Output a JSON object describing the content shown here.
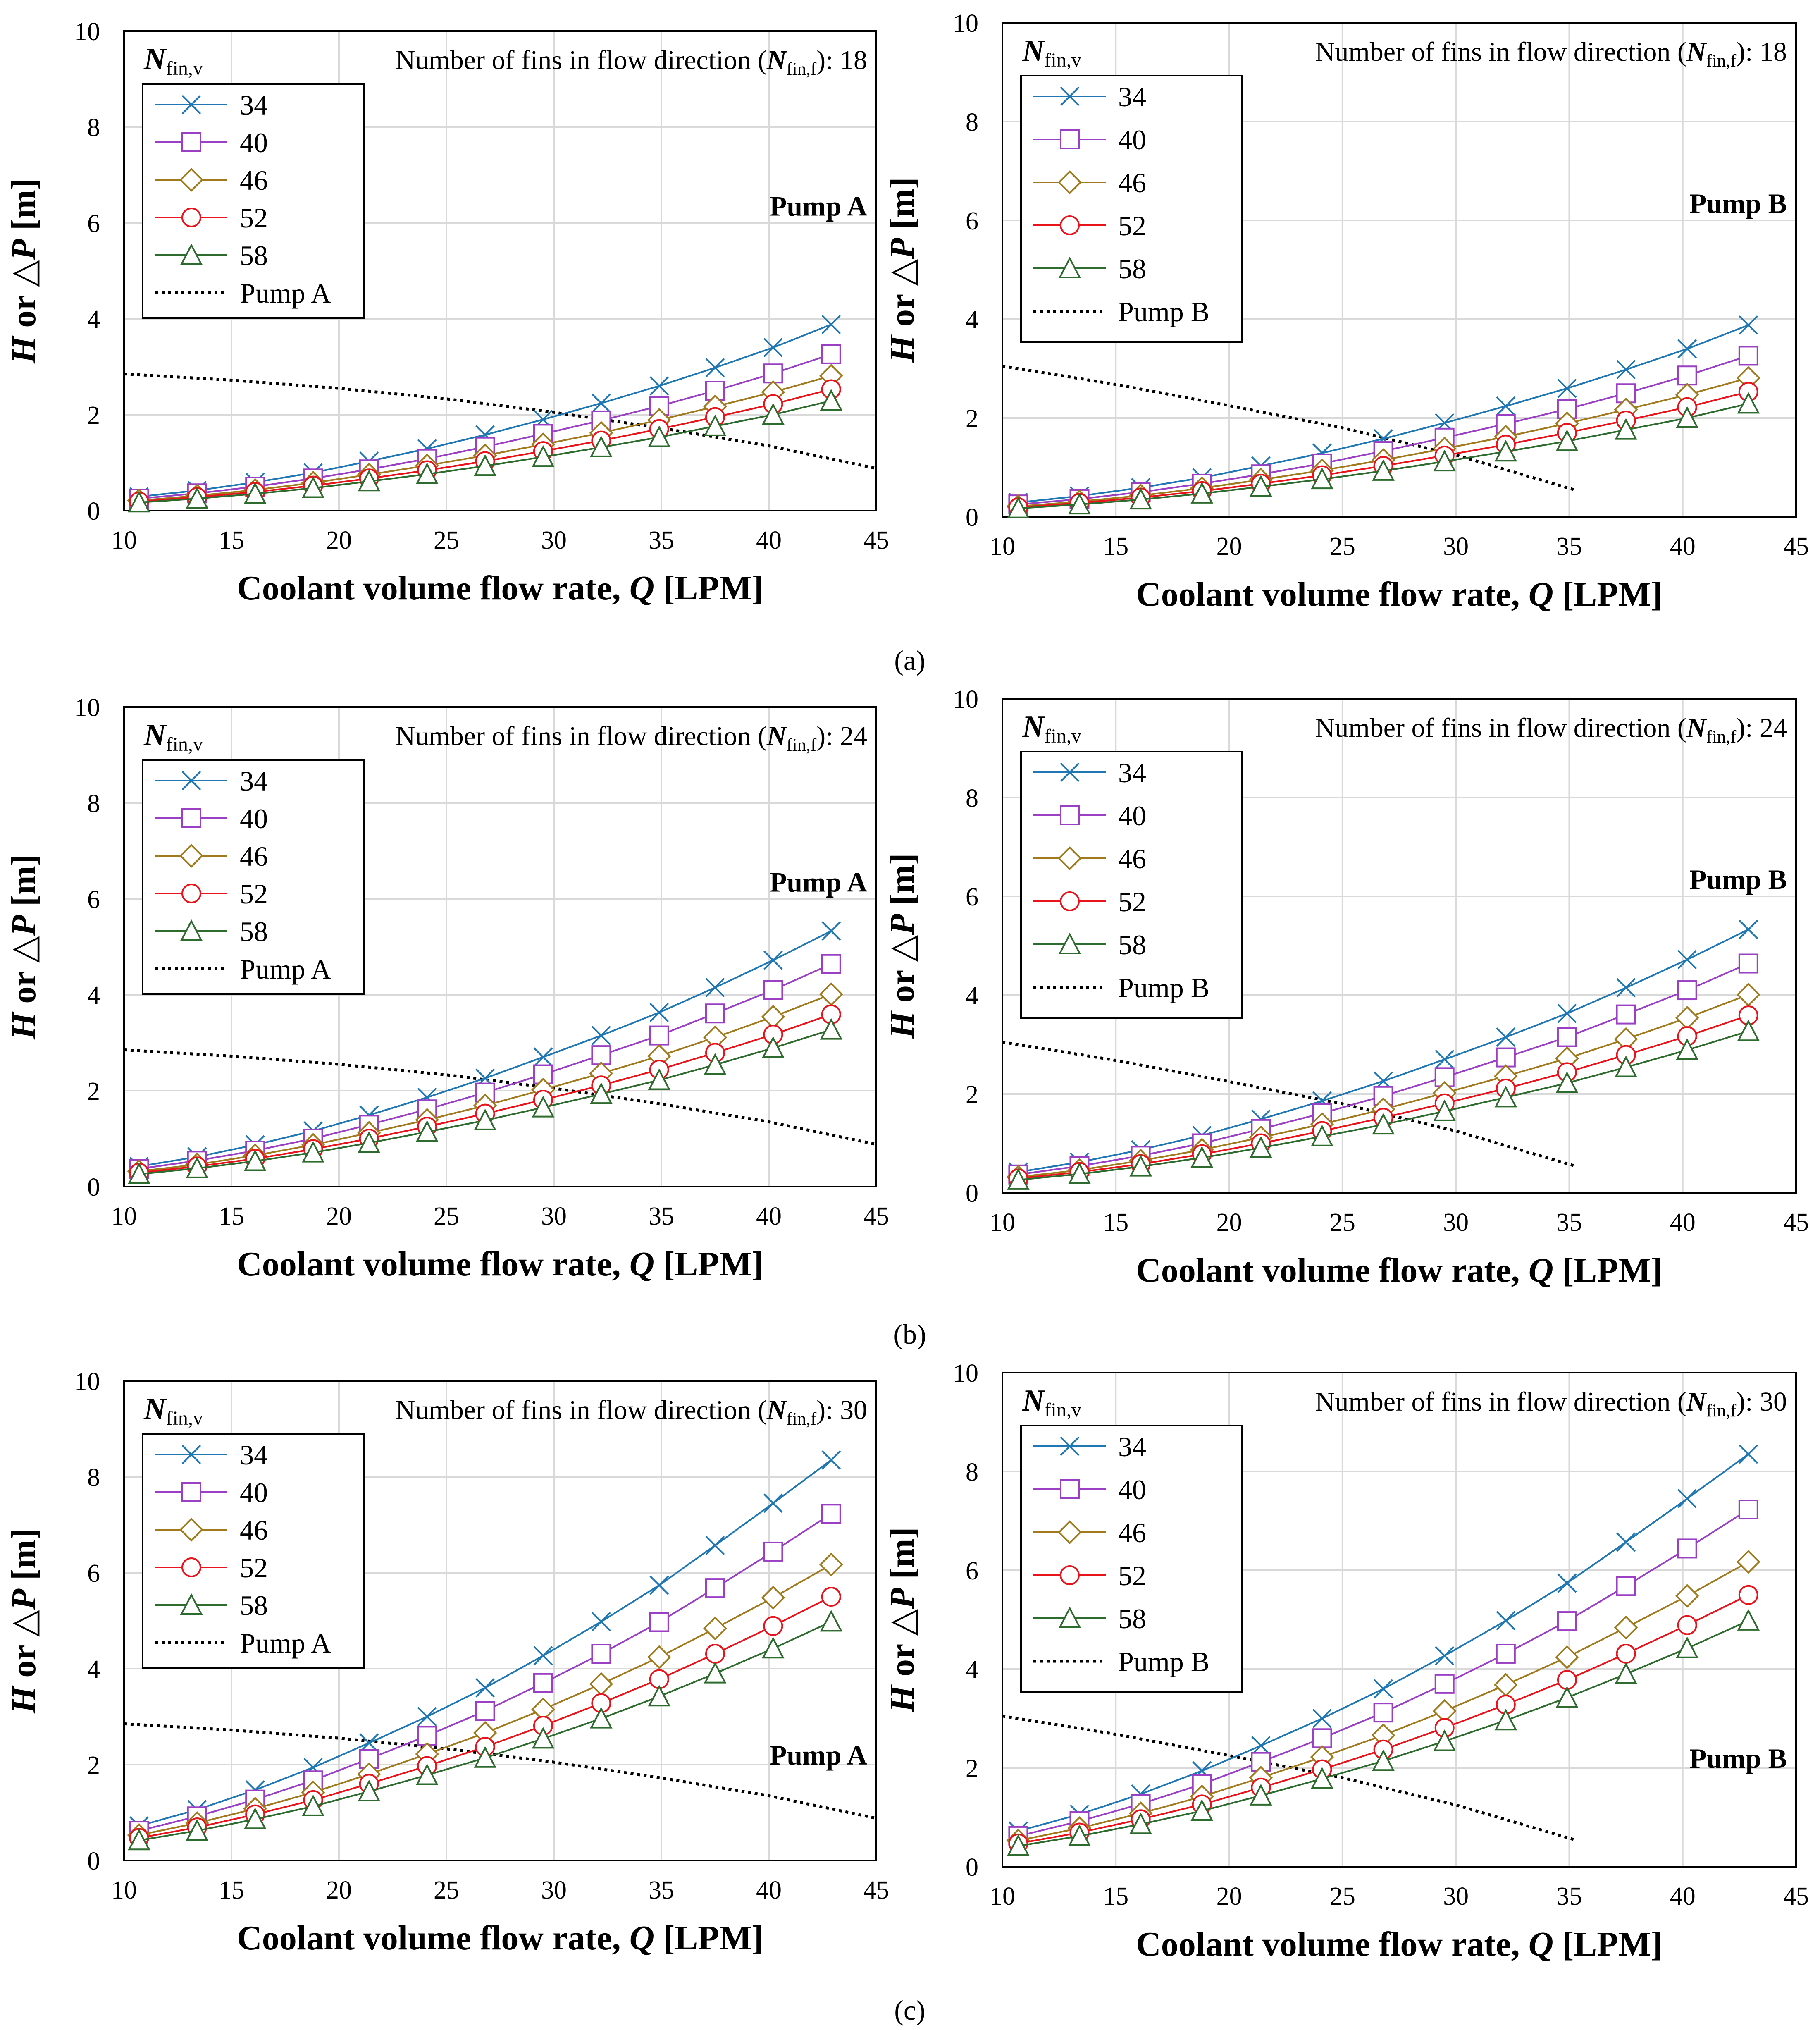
{
  "figure": {
    "panel_labels": [
      "(a)",
      "(b)",
      "(c)"
    ]
  },
  "colors": {
    "34": "#1f77b4",
    "40": "#9b40c4",
    "46": "#a07a1c",
    "52": "#e8131b",
    "58": "#2e6b2e",
    "pump": "#000000",
    "grid": "#d9d9d9",
    "axis": "#000000"
  },
  "chart_data": [
    {
      "type": "line",
      "id": "a-left",
      "pump": "Pump A",
      "nfinf": "18",
      "xlabel": "Coolant volume flow rate, Q [LPM]",
      "ylabel": "H or △P [m]",
      "xlim": [
        10,
        45
      ],
      "ylim": [
        0,
        10
      ],
      "xticks": [
        "10",
        "15",
        "20",
        "25",
        "30",
        "35",
        "40",
        "45"
      ],
      "yticks": [
        "0",
        "2",
        "4",
        "6",
        "8",
        "10"
      ],
      "legend_title": "N_fin,v",
      "annotation": "Number of fins in flow direction (N_fin,f): 18",
      "pump_label": "Pump A",
      "x": [
        10.7,
        13.4,
        16.1,
        18.8,
        21.4,
        24.1,
        26.8,
        29.5,
        32.2,
        34.9,
        37.5,
        40.2,
        42.9
      ],
      "series": [
        {
          "name": "34",
          "marker": "x",
          "values": [
            0.29,
            0.42,
            0.59,
            0.79,
            1.03,
            1.29,
            1.58,
            1.9,
            2.24,
            2.6,
            2.98,
            3.4,
            3.88
          ]
        },
        {
          "name": "40",
          "marker": "square",
          "values": [
            0.25,
            0.36,
            0.5,
            0.67,
            0.86,
            1.08,
            1.33,
            1.6,
            1.88,
            2.18,
            2.5,
            2.86,
            3.26
          ]
        },
        {
          "name": "46",
          "marker": "diamond",
          "values": [
            0.21,
            0.31,
            0.43,
            0.58,
            0.75,
            0.94,
            1.15,
            1.38,
            1.62,
            1.89,
            2.17,
            2.47,
            2.81
          ]
        },
        {
          "name": "52",
          "marker": "circle",
          "values": [
            0.19,
            0.28,
            0.39,
            0.52,
            0.67,
            0.84,
            1.03,
            1.24,
            1.46,
            1.7,
            1.95,
            2.22,
            2.53
          ]
        },
        {
          "name": "58",
          "marker": "triangle",
          "values": [
            0.17,
            0.25,
            0.35,
            0.47,
            0.61,
            0.76,
            0.93,
            1.12,
            1.32,
            1.53,
            1.76,
            2.0,
            2.29
          ]
        }
      ],
      "pump_curve": {
        "name": "Pump A",
        "x": [
          10,
          15,
          20,
          25,
          30,
          35,
          40,
          45
        ],
        "values": [
          2.85,
          2.72,
          2.55,
          2.33,
          2.05,
          1.72,
          1.35,
          0.88
        ]
      }
    },
    {
      "type": "line",
      "id": "a-right",
      "pump": "Pump B",
      "nfinf": "18",
      "xlabel": "Coolant volume flow rate, Q [LPM]",
      "ylabel": "H or △P [m]",
      "xlim": [
        10,
        45
      ],
      "ylim": [
        0,
        10
      ],
      "xticks": [
        "10",
        "15",
        "20",
        "25",
        "30",
        "35",
        "40",
        "45"
      ],
      "yticks": [
        "0",
        "2",
        "4",
        "6",
        "8",
        "10"
      ],
      "legend_title": "N_fin,v",
      "annotation": "Number of fins in flow direction (N_fin,f): 18",
      "pump_label": "Pump B",
      "x": [
        10.7,
        13.4,
        16.1,
        18.8,
        21.4,
        24.1,
        26.8,
        29.5,
        32.2,
        34.9,
        37.5,
        40.2,
        42.9
      ],
      "series": [
        {
          "name": "34",
          "marker": "x",
          "values": [
            0.29,
            0.42,
            0.59,
            0.79,
            1.03,
            1.29,
            1.58,
            1.9,
            2.24,
            2.6,
            2.98,
            3.4,
            3.88
          ]
        },
        {
          "name": "40",
          "marker": "square",
          "values": [
            0.25,
            0.36,
            0.5,
            0.67,
            0.86,
            1.08,
            1.33,
            1.6,
            1.88,
            2.18,
            2.5,
            2.86,
            3.26
          ]
        },
        {
          "name": "46",
          "marker": "diamond",
          "values": [
            0.21,
            0.31,
            0.43,
            0.58,
            0.75,
            0.94,
            1.15,
            1.38,
            1.62,
            1.89,
            2.17,
            2.47,
            2.81
          ]
        },
        {
          "name": "52",
          "marker": "circle",
          "values": [
            0.19,
            0.28,
            0.39,
            0.52,
            0.67,
            0.84,
            1.03,
            1.24,
            1.46,
            1.7,
            1.95,
            2.22,
            2.53
          ]
        },
        {
          "name": "58",
          "marker": "triangle",
          "values": [
            0.17,
            0.25,
            0.35,
            0.47,
            0.61,
            0.76,
            0.93,
            1.12,
            1.32,
            1.53,
            1.76,
            2.0,
            2.29
          ]
        }
      ],
      "pump_curve": {
        "name": "Pump B",
        "x": [
          10,
          15,
          20,
          25,
          30,
          35.2
        ],
        "values": [
          3.05,
          2.68,
          2.25,
          1.8,
          1.25,
          0.55
        ]
      }
    },
    {
      "type": "line",
      "id": "b-left",
      "pump": "Pump A",
      "nfinf": "24",
      "xlabel": "Coolant volume flow rate, Q [LPM]",
      "ylabel": "H or △P [m]",
      "xlim": [
        10,
        45
      ],
      "ylim": [
        0,
        10
      ],
      "xticks": [
        "10",
        "15",
        "20",
        "25",
        "30",
        "35",
        "40",
        "45"
      ],
      "yticks": [
        "0",
        "2",
        "4",
        "6",
        "8",
        "10"
      ],
      "legend_title": "N_fin,v",
      "annotation": "Number of fins in flow direction (N_fin,f): 24",
      "pump_label": "Pump A",
      "x": [
        10.7,
        13.4,
        16.1,
        18.8,
        21.4,
        24.1,
        26.8,
        29.5,
        32.2,
        34.9,
        37.5,
        40.2,
        42.9
      ],
      "series": [
        {
          "name": "34",
          "marker": "x",
          "values": [
            0.42,
            0.62,
            0.87,
            1.16,
            1.49,
            1.86,
            2.26,
            2.7,
            3.15,
            3.63,
            4.15,
            4.72,
            5.33
          ]
        },
        {
          "name": "40",
          "marker": "square",
          "values": [
            0.37,
            0.54,
            0.75,
            1.0,
            1.29,
            1.61,
            1.96,
            2.34,
            2.74,
            3.15,
            3.61,
            4.1,
            4.64
          ]
        },
        {
          "name": "46",
          "marker": "diamond",
          "values": [
            0.32,
            0.46,
            0.65,
            0.87,
            1.12,
            1.39,
            1.69,
            2.02,
            2.36,
            2.72,
            3.11,
            3.54,
            4.01
          ]
        },
        {
          "name": "52",
          "marker": "circle",
          "values": [
            0.29,
            0.42,
            0.58,
            0.78,
            1.0,
            1.25,
            1.52,
            1.81,
            2.11,
            2.44,
            2.79,
            3.17,
            3.59
          ]
        },
        {
          "name": "58",
          "marker": "triangle",
          "values": [
            0.26,
            0.38,
            0.53,
            0.71,
            0.91,
            1.14,
            1.38,
            1.65,
            1.93,
            2.22,
            2.54,
            2.89,
            3.27
          ]
        }
      ],
      "pump_curve": {
        "name": "Pump A",
        "x": [
          10,
          15,
          20,
          25,
          30,
          35,
          40,
          45
        ],
        "values": [
          2.85,
          2.72,
          2.55,
          2.33,
          2.05,
          1.72,
          1.35,
          0.88
        ]
      }
    },
    {
      "type": "line",
      "id": "b-right",
      "pump": "Pump B",
      "nfinf": "24",
      "xlabel": "Coolant volume flow rate, Q [LPM]",
      "ylabel": "H or △P [m]",
      "xlim": [
        10,
        45
      ],
      "ylim": [
        0,
        10
      ],
      "xticks": [
        "10",
        "15",
        "20",
        "25",
        "30",
        "35",
        "40",
        "45"
      ],
      "yticks": [
        "0",
        "2",
        "4",
        "6",
        "8",
        "10"
      ],
      "legend_title": "N_fin,v",
      "annotation": "Number of fins in flow direction (N_fin,f): 24",
      "pump_label": "Pump B",
      "x": [
        10.7,
        13.4,
        16.1,
        18.8,
        21.4,
        24.1,
        26.8,
        29.5,
        32.2,
        34.9,
        37.5,
        40.2,
        42.9
      ],
      "series": [
        {
          "name": "34",
          "marker": "x",
          "values": [
            0.42,
            0.62,
            0.87,
            1.16,
            1.49,
            1.86,
            2.26,
            2.7,
            3.15,
            3.63,
            4.15,
            4.72,
            5.33
          ]
        },
        {
          "name": "40",
          "marker": "square",
          "values": [
            0.37,
            0.54,
            0.75,
            1.0,
            1.29,
            1.61,
            1.96,
            2.34,
            2.74,
            3.15,
            3.61,
            4.1,
            4.64
          ]
        },
        {
          "name": "46",
          "marker": "diamond",
          "values": [
            0.32,
            0.46,
            0.65,
            0.87,
            1.12,
            1.39,
            1.69,
            2.02,
            2.36,
            2.72,
            3.11,
            3.54,
            4.01
          ]
        },
        {
          "name": "52",
          "marker": "circle",
          "values": [
            0.29,
            0.42,
            0.58,
            0.78,
            1.0,
            1.25,
            1.52,
            1.81,
            2.11,
            2.44,
            2.79,
            3.17,
            3.59
          ]
        },
        {
          "name": "58",
          "marker": "triangle",
          "values": [
            0.26,
            0.38,
            0.53,
            0.71,
            0.91,
            1.14,
            1.38,
            1.65,
            1.93,
            2.22,
            2.54,
            2.89,
            3.27
          ]
        }
      ],
      "pump_curve": {
        "name": "Pump B",
        "x": [
          10,
          15,
          20,
          25,
          30,
          35.2
        ],
        "values": [
          3.05,
          2.68,
          2.25,
          1.8,
          1.25,
          0.55
        ]
      }
    },
    {
      "type": "line",
      "id": "c-left",
      "pump": "Pump A",
      "nfinf": "30",
      "xlabel": "Coolant volume flow rate, Q [LPM]",
      "ylabel": "H or △P [m]",
      "xlim": [
        10,
        45
      ],
      "ylim": [
        0,
        10
      ],
      "xticks": [
        "10",
        "15",
        "20",
        "25",
        "30",
        "35",
        "40",
        "45"
      ],
      "yticks": [
        "0",
        "2",
        "4",
        "6",
        "8",
        "10"
      ],
      "legend_title": "N_fin,v",
      "annotation": "Number of fins in flow direction (N_fin,f): 30",
      "pump_label": "Pump A",
      "x": [
        10.7,
        13.4,
        16.1,
        18.8,
        21.4,
        24.1,
        26.8,
        29.5,
        32.2,
        34.9,
        37.5,
        40.2,
        42.9
      ],
      "series": [
        {
          "name": "34",
          "marker": "x",
          "values": [
            0.72,
            1.06,
            1.47,
            1.94,
            2.45,
            3.0,
            3.6,
            4.27,
            4.98,
            5.74,
            6.57,
            7.45,
            8.35
          ]
        },
        {
          "name": "40",
          "marker": "square",
          "values": [
            0.62,
            0.92,
            1.27,
            1.67,
            2.12,
            2.6,
            3.12,
            3.7,
            4.31,
            4.97,
            5.68,
            6.44,
            7.23
          ]
        },
        {
          "name": "46",
          "marker": "diamond",
          "values": [
            0.53,
            0.78,
            1.08,
            1.42,
            1.8,
            2.22,
            2.66,
            3.15,
            3.68,
            4.24,
            4.84,
            5.48,
            6.17
          ]
        },
        {
          "name": "52",
          "marker": "circle",
          "values": [
            0.47,
            0.69,
            0.96,
            1.26,
            1.6,
            1.97,
            2.37,
            2.81,
            3.28,
            3.78,
            4.31,
            4.89,
            5.5
          ]
        },
        {
          "name": "58",
          "marker": "triangle",
          "values": [
            0.42,
            0.62,
            0.86,
            1.13,
            1.44,
            1.78,
            2.14,
            2.54,
            2.96,
            3.42,
            3.9,
            4.42,
            4.98
          ]
        }
      ],
      "pump_curve": {
        "name": "Pump A",
        "x": [
          10,
          15,
          20,
          25,
          30,
          35,
          40,
          45
        ],
        "values": [
          2.85,
          2.72,
          2.55,
          2.33,
          2.05,
          1.72,
          1.35,
          0.88
        ]
      }
    },
    {
      "type": "line",
      "id": "c-right",
      "pump": "Pump B",
      "nfinf": "30",
      "xlabel": "Coolant volume flow rate, Q [LPM]",
      "ylabel": "H or △P [m]",
      "xlim": [
        10,
        45
      ],
      "ylim": [
        0,
        10
      ],
      "xticks": [
        "10",
        "15",
        "20",
        "25",
        "30",
        "35",
        "40",
        "45"
      ],
      "yticks": [
        "0",
        "2",
        "4",
        "6",
        "8",
        "10"
      ],
      "legend_title": "N_fin,v",
      "annotation": "Number of fins in flow direction (N_fin,f): 30",
      "pump_label": "Pump B",
      "x": [
        10.7,
        13.4,
        16.1,
        18.8,
        21.4,
        24.1,
        26.8,
        29.5,
        32.2,
        34.9,
        37.5,
        40.2,
        42.9
      ],
      "series": [
        {
          "name": "34",
          "marker": "x",
          "values": [
            0.72,
            1.06,
            1.47,
            1.94,
            2.45,
            3.0,
            3.6,
            4.27,
            4.98,
            5.74,
            6.57,
            7.45,
            8.35
          ]
        },
        {
          "name": "40",
          "marker": "square",
          "values": [
            0.62,
            0.92,
            1.27,
            1.67,
            2.12,
            2.6,
            3.12,
            3.7,
            4.31,
            4.97,
            5.68,
            6.44,
            7.23
          ]
        },
        {
          "name": "46",
          "marker": "diamond",
          "values": [
            0.53,
            0.78,
            1.08,
            1.42,
            1.8,
            2.22,
            2.66,
            3.15,
            3.68,
            4.24,
            4.84,
            5.48,
            6.17
          ]
        },
        {
          "name": "52",
          "marker": "circle",
          "values": [
            0.47,
            0.69,
            0.96,
            1.26,
            1.6,
            1.97,
            2.37,
            2.81,
            3.28,
            3.78,
            4.31,
            4.89,
            5.5
          ]
        },
        {
          "name": "58",
          "marker": "triangle",
          "values": [
            0.42,
            0.62,
            0.86,
            1.13,
            1.44,
            1.78,
            2.14,
            2.54,
            2.96,
            3.42,
            3.9,
            4.42,
            4.98
          ]
        }
      ],
      "pump_curve": {
        "name": "Pump B",
        "x": [
          10,
          15,
          20,
          25,
          30,
          35.2
        ],
        "values": [
          3.05,
          2.68,
          2.25,
          1.8,
          1.25,
          0.55
        ]
      }
    }
  ]
}
